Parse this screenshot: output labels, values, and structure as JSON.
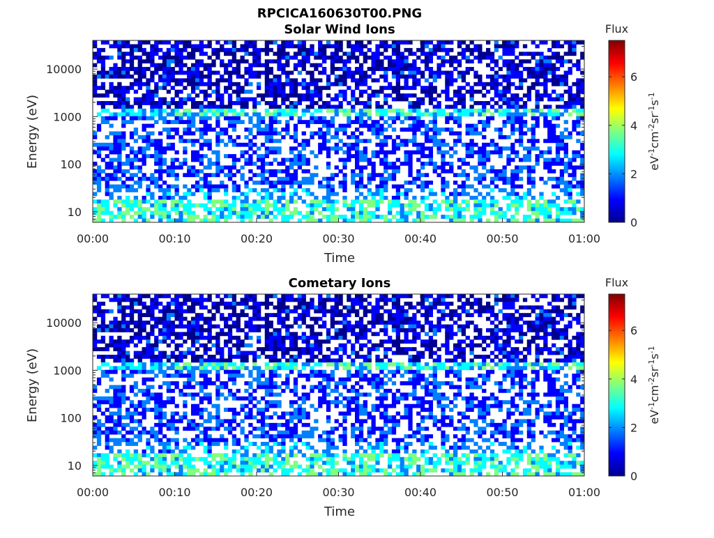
{
  "figure": {
    "title": "RPCICA160630T00.PNG"
  },
  "colorbar_colors": [
    "#00008f",
    "#0000ff",
    "#0080ff",
    "#00ffff",
    "#80ff80",
    "#ffff00",
    "#ff8000",
    "#ff0000",
    "#800000"
  ],
  "chart_data": [
    {
      "type": "heatmap",
      "title": "Solar Wind Ions",
      "xlabel": "Time",
      "ylabel": "Energy (eV)",
      "x_ticks": [
        "00:00",
        "00:10",
        "00:20",
        "00:30",
        "00:40",
        "00:50",
        "01:00"
      ],
      "xlim_minutes": [
        0,
        60
      ],
      "y_ticks": [
        "10",
        "100",
        "1000",
        "10000"
      ],
      "y_tick_values": [
        10,
        100,
        1000,
        10000
      ],
      "ylim": [
        6,
        40000
      ],
      "y_scale": "log",
      "colorbar": {
        "title": "Flux",
        "label": "eV-1cm-2sr-1s-1",
        "ticks": [
          "0",
          "2",
          "4",
          "6"
        ],
        "tick_values": [
          0,
          2,
          4,
          6
        ],
        "range": [
          0,
          7.5
        ]
      },
      "grid": false,
      "seed": 7
    },
    {
      "type": "heatmap",
      "title": "Cometary Ions",
      "xlabel": "Time",
      "ylabel": "Energy (eV)",
      "x_ticks": [
        "00:00",
        "00:10",
        "00:20",
        "00:30",
        "00:40",
        "00:50",
        "01:00"
      ],
      "xlim_minutes": [
        0,
        60
      ],
      "y_ticks": [
        "10",
        "100",
        "1000",
        "10000"
      ],
      "y_tick_values": [
        10,
        100,
        1000,
        10000
      ],
      "ylim": [
        6,
        40000
      ],
      "y_scale": "log",
      "colorbar": {
        "title": "Flux",
        "label": "eV-1cm-2sr-1s-1",
        "ticks": [
          "0",
          "2",
          "4",
          "6"
        ],
        "tick_values": [
          0,
          2,
          4,
          6
        ],
        "range": [
          0,
          7.5
        ]
      },
      "grid": false,
      "seed": 7
    }
  ]
}
